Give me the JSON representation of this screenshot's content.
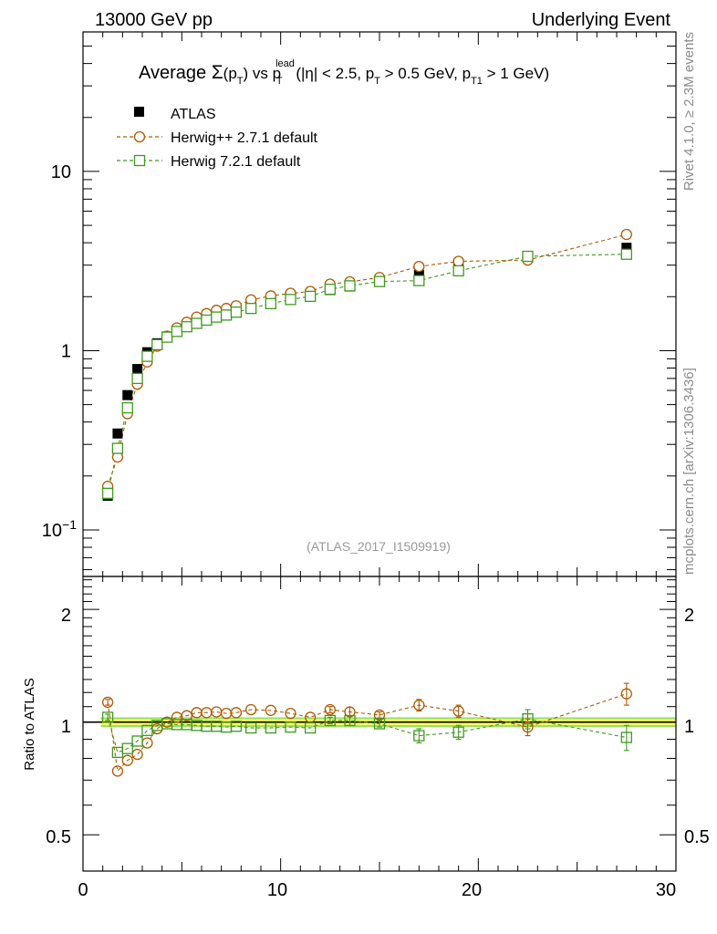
{
  "header": {
    "left": "13000 GeV pp",
    "right": "Underlying Event"
  },
  "side_labels": {
    "rivet": "Rivet 4.1.0, ≥ 2.3M events",
    "mcplots": "mcplots.cern.ch [arXiv:1306.3436]"
  },
  "chart_data": {
    "type": "scatter",
    "title": "Average Σ(p_T) vs p_T^lead (|η| < 2.5, p_T > 0.5 GeV, p_T1 > 1 GeV)",
    "title_parts": {
      "average": "Average ",
      "sigma": "Σ",
      "pt_open": "(p",
      "T": "T",
      "close_vs": ") vs p",
      "lead": "lead",
      "eta_part": " (|η| < 2.5, p",
      "gt05": " > 0.5 GeV, p",
      "T1": "T1",
      "gt1": " > 1 GeV)"
    },
    "analysis_id": "(ATLAS_2017_I1509919)",
    "xlabel": "",
    "ylabel_ratio": "Ratio to ATLAS",
    "xlim": [
      0,
      30
    ],
    "ylim": [
      0.055,
      60
    ],
    "ratio_ylim": [
      0.4,
      2.45
    ],
    "x_ticks": [
      "0",
      "10",
      "20",
      "30"
    ],
    "y_ticks": [
      {
        "value": 0.1,
        "base": "10",
        "exp": "−1"
      },
      {
        "value": 1,
        "base": "1",
        "exp": ""
      },
      {
        "value": 10,
        "base": "10",
        "exp": ""
      }
    ],
    "ratio_ticks": [
      "0.5",
      "1",
      "2"
    ],
    "x": [
      1.25,
      1.75,
      2.25,
      2.75,
      3.25,
      3.75,
      4.25,
      4.75,
      5.25,
      5.75,
      6.25,
      6.75,
      7.25,
      7.75,
      8.5,
      9.5,
      10.5,
      11.5,
      12.5,
      13.5,
      15.0,
      17.0,
      19.0,
      22.5,
      27.5
    ],
    "legend": [
      "ATLAS",
      "Herwig++ 2.7.1 default",
      "Herwig 7.2.1 default"
    ],
    "series": [
      {
        "name": "ATLAS",
        "color": "#000000",
        "marker": "filled-square",
        "values": [
          0.155,
          0.345,
          0.565,
          0.79,
          0.98,
          1.1,
          1.2,
          1.3,
          1.38,
          1.45,
          1.52,
          1.58,
          1.63,
          1.68,
          1.78,
          1.88,
          1.98,
          2.08,
          2.18,
          2.28,
          2.45,
          2.65,
          2.95,
          3.3,
          3.75
        ]
      },
      {
        "name": "Herwig++ 2.7.1 default",
        "color": "#b05a00",
        "marker": "open-circle",
        "values": [
          0.175,
          0.255,
          0.445,
          0.65,
          0.865,
          1.06,
          1.205,
          1.34,
          1.44,
          1.54,
          1.61,
          1.68,
          1.72,
          1.78,
          1.92,
          2.02,
          2.09,
          2.14,
          2.35,
          2.42,
          2.56,
          2.95,
          3.15,
          3.2,
          4.45
        ]
      },
      {
        "name": "Herwig 7.2.1 default",
        "color": "#3f9a1f",
        "marker": "open-square",
        "values": [
          0.16,
          0.285,
          0.48,
          0.7,
          0.93,
          1.08,
          1.19,
          1.28,
          1.36,
          1.42,
          1.48,
          1.54,
          1.58,
          1.64,
          1.72,
          1.83,
          1.93,
          2.01,
          2.2,
          2.3,
          2.43,
          2.46,
          2.79,
          3.36,
          3.45
        ]
      }
    ],
    "ratio_series": [
      {
        "name": "Herwig++ 2.7.1 default",
        "values": [
          1.13,
          0.74,
          0.79,
          0.82,
          0.88,
          0.96,
          1.0,
          1.03,
          1.04,
          1.06,
          1.06,
          1.065,
          1.055,
          1.06,
          1.08,
          1.075,
          1.055,
          1.03,
          1.08,
          1.065,
          1.045,
          1.11,
          1.07,
          0.97,
          1.19
        ],
        "err": [
          0.02,
          0.01,
          0.01,
          0.01,
          0.01,
          0.01,
          0.01,
          0.01,
          0.01,
          0.01,
          0.01,
          0.01,
          0.01,
          0.01,
          0.01,
          0.01,
          0.01,
          0.01,
          0.02,
          0.03,
          0.02,
          0.04,
          0.04,
          0.05,
          0.08
        ]
      },
      {
        "name": "Herwig 7.2.1 default",
        "values": [
          1.03,
          0.83,
          0.85,
          0.89,
          0.95,
          0.98,
          0.99,
          0.985,
          0.985,
          0.98,
          0.975,
          0.975,
          0.97,
          0.975,
          0.965,
          0.965,
          0.97,
          0.965,
          1.01,
          1.01,
          0.99,
          0.92,
          0.94,
          1.02,
          0.91
        ],
        "err": [
          0.02,
          0.01,
          0.01,
          0.01,
          0.01,
          0.01,
          0.01,
          0.01,
          0.01,
          0.01,
          0.01,
          0.01,
          0.01,
          0.01,
          0.01,
          0.01,
          0.01,
          0.01,
          0.02,
          0.03,
          0.02,
          0.04,
          0.04,
          0.06,
          0.07
        ]
      }
    ],
    "band_colors": {
      "inner": "#ffff66",
      "outer": "#99e066"
    }
  }
}
